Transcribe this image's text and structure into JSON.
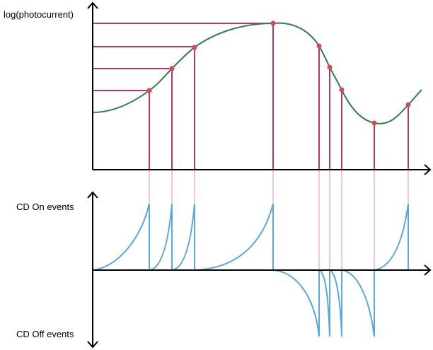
{
  "labels": {
    "top_y_axis": "log(photocurrent)",
    "on_axis": "CD On events",
    "off_axis": "CD Off events"
  },
  "colors": {
    "axis": "#000000",
    "photocurrent_curve": "#2e7d4f",
    "threshold_lines": "#b5386a",
    "threshold_points": "#d9484f",
    "connector_lines": "#f2c6d6",
    "event_traces": "#5aa9dc"
  }
}
